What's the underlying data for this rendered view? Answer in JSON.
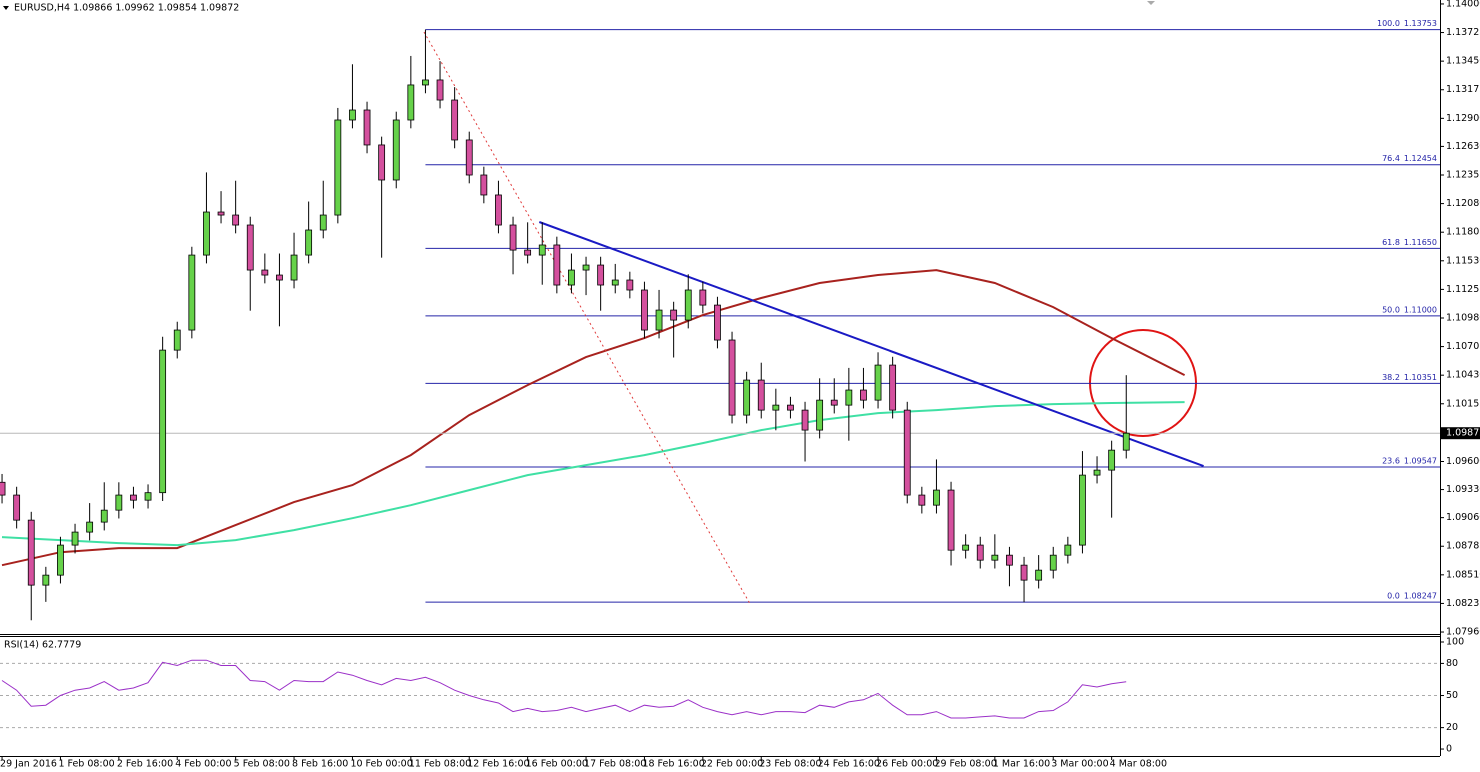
{
  "chart_data": [
    {
      "type": "candlestick",
      "title": "EURUSD,H4  1.09866 1.09962 1.09854 1.09872",
      "categories": [
        "29 Jan 2016",
        null,
        null,
        null,
        "1 Feb 08:00",
        null,
        null,
        null,
        "2 Feb 16:00",
        null,
        null,
        null,
        "4 Feb 00:00",
        null,
        null,
        null,
        "5 Feb 08:00",
        null,
        null,
        null,
        "8 Feb 16:00",
        null,
        null,
        null,
        "10 Feb 00:00",
        null,
        null,
        null,
        "11 Feb 08:00",
        null,
        null,
        null,
        "12 Feb 16:00",
        null,
        null,
        null,
        "16 Feb 00:00",
        null,
        null,
        null,
        "17 Feb 08:00",
        null,
        null,
        null,
        "18 Feb 16:00",
        null,
        null,
        null,
        "22 Feb 00:00",
        null,
        null,
        null,
        "23 Feb 08:00",
        null,
        null,
        null,
        "24 Feb 16:00",
        null,
        null,
        null,
        "26 Feb 00:00",
        null,
        null,
        null,
        "29 Feb 08:00",
        null,
        null,
        null,
        "1 Mar 16:00",
        null,
        null,
        null,
        "3 Mar 00:00",
        null,
        null,
        null,
        "4 Mar 08:00",
        null
      ],
      "open": [
        1.094,
        1.09277,
        1.09036,
        1.08411,
        1.08507,
        1.08796,
        1.08921,
        1.09017,
        1.09132,
        1.09277,
        1.09228,
        1.093,
        1.10671,
        1.10864,
        1.11585,
        1.11999,
        1.1197,
        1.11874,
        1.11441,
        1.11393,
        1.11345,
        1.11585,
        1.11826,
        1.1197,
        1.12884,
        1.1298,
        1.12644,
        1.12307,
        1.12884,
        1.13221,
        1.13269,
        1.13076,
        1.12692,
        1.12355,
        1.12163,
        1.11874,
        1.11633,
        1.11585,
        1.11682,
        1.11297,
        1.11441,
        1.11489,
        1.11297,
        1.11345,
        1.11249,
        1.10864,
        1.11056,
        1.1096,
        1.11249,
        1.11104,
        1.10768,
        1.10046,
        1.10383,
        1.10094,
        1.10142,
        1.10094,
        1.09902,
        1.1019,
        1.10142,
        1.10287,
        1.1019,
        1.10527,
        1.10094,
        1.09277,
        1.0918,
        1.09325,
        1.08747,
        1.08796,
        1.08651,
        1.08699,
        1.08603,
        1.08459,
        1.08555,
        1.08699,
        1.08796,
        1.09469,
        1.09517,
        1.09709
      ],
      "high": [
        1.0948,
        1.09357,
        1.09116,
        1.08587,
        1.08876,
        1.09001,
        1.092,
        1.094,
        1.094,
        1.09357,
        1.0938,
        1.108,
        1.10944,
        1.11665,
        1.1238,
        1.122,
        1.123,
        1.11954,
        1.116,
        1.116,
        1.118,
        1.121,
        1.123,
        1.13,
        1.1342,
        1.1306,
        1.12724,
        1.12964,
        1.135,
        1.13753,
        1.1345,
        1.132,
        1.12772,
        1.12435,
        1.123,
        1.11954,
        1.119,
        1.119,
        1.11762,
        1.116,
        1.11569,
        1.11569,
        1.115,
        1.11425,
        1.11329,
        1.1125,
        1.11136,
        1.114,
        1.11329,
        1.11184,
        1.10848,
        1.10463,
        1.1055,
        1.103,
        1.10222,
        1.10174,
        1.104,
        1.104,
        1.105,
        1.105,
        1.1065,
        1.10607,
        1.10174,
        1.09357,
        1.0962,
        1.09405,
        1.089,
        1.08876,
        1.089,
        1.08779,
        1.08683,
        1.087,
        1.08779,
        1.08876,
        1.097,
        1.0965,
        1.098,
        1.1043
      ],
      "low": [
        1.09197,
        1.08956,
        1.08073,
        1.0825,
        1.08427,
        1.08716,
        1.08841,
        1.08937,
        1.09052,
        1.09148,
        1.09148,
        1.0922,
        1.10591,
        1.10784,
        1.11505,
        1.1189,
        1.11794,
        1.1105,
        1.11313,
        1.109,
        1.11265,
        1.11505,
        1.11746,
        1.1189,
        1.12804,
        1.12564,
        1.1156,
        1.12227,
        1.12804,
        1.13141,
        1.12996,
        1.12612,
        1.12275,
        1.12083,
        1.11794,
        1.114,
        1.11505,
        1.113,
        1.11217,
        1.11217,
        1.112,
        1.1105,
        1.11217,
        1.11169,
        1.10784,
        1.10784,
        1.106,
        1.1088,
        1.11024,
        1.10688,
        1.09966,
        1.09966,
        1.10014,
        1.099,
        1.10014,
        1.096,
        1.09822,
        1.10062,
        1.098,
        1.1011,
        1.1011,
        1.10014,
        1.09197,
        1.091,
        1.091,
        1.086,
        1.08667,
        1.08571,
        1.08571,
        1.084,
        1.08247,
        1.08379,
        1.08475,
        1.08619,
        1.08716,
        1.09389,
        1.0906,
        1.09629
      ],
      "close": [
        1.09277,
        1.09036,
        1.08411,
        1.08507,
        1.08796,
        1.08921,
        1.09017,
        1.09132,
        1.09277,
        1.09228,
        1.093,
        1.10671,
        1.10864,
        1.11585,
        1.11999,
        1.1197,
        1.11874,
        1.11441,
        1.11393,
        1.11345,
        1.11585,
        1.11826,
        1.1197,
        1.12884,
        1.1298,
        1.12644,
        1.12307,
        1.12884,
        1.13221,
        1.13269,
        1.13076,
        1.12692,
        1.12355,
        1.12163,
        1.11874,
        1.11633,
        1.11585,
        1.11682,
        1.11297,
        1.11441,
        1.11489,
        1.11297,
        1.11345,
        1.11249,
        1.10864,
        1.11056,
        1.1096,
        1.11249,
        1.11104,
        1.10768,
        1.10046,
        1.10383,
        1.10094,
        1.10142,
        1.10094,
        1.09902,
        1.1019,
        1.10142,
        1.10287,
        1.1019,
        1.10527,
        1.10094,
        1.09277,
        1.0918,
        1.09325,
        1.08747,
        1.08796,
        1.08651,
        1.08699,
        1.08603,
        1.08459,
        1.08555,
        1.08699,
        1.08796,
        1.09469,
        1.09517,
        1.09709,
        1.09872
      ],
      "up_color": "#66d24a",
      "down_color": "#d4509e",
      "xlim": [
        -0.14,
        98.49
      ],
      "ylim": [
        1.07941,
        1.14038
      ],
      "yticks": [
        {
          "value": 1.14,
          "label": "1.14000"
        },
        {
          "value": 1.13725,
          "label": "1.13725"
        },
        {
          "value": 1.1345,
          "label": "1.13450"
        },
        {
          "value": 1.13175,
          "label": "1.13175"
        },
        {
          "value": 1.129,
          "label": "1.12900"
        },
        {
          "value": 1.1263,
          "label": "1.12630"
        },
        {
          "value": 1.12355,
          "label": "1.12355"
        },
        {
          "value": 1.1208,
          "label": "1.12080"
        },
        {
          "value": 1.11805,
          "label": "1.11805"
        },
        {
          "value": 1.1153,
          "label": "1.11530"
        },
        {
          "value": 1.11255,
          "label": "1.11255"
        },
        {
          "value": 1.1098,
          "label": "1.10980"
        },
        {
          "value": 1.10705,
          "label": "1.10705"
        },
        {
          "value": 1.1043,
          "label": "1.10430"
        },
        {
          "value": 1.10155,
          "label": "1.10155"
        },
        {
          "value": 1.096,
          "label": "1.09600"
        },
        {
          "value": 1.0933,
          "label": "1.09330"
        },
        {
          "value": 1.0906,
          "label": "1.09060"
        },
        {
          "value": 1.08785,
          "label": "1.08785"
        },
        {
          "value": 1.0851,
          "label": "1.08510"
        },
        {
          "value": 1.08235,
          "label": "1.08235"
        },
        {
          "value": 1.0796,
          "label": "1.07960"
        }
      ],
      "last_price": {
        "value": 1.09872,
        "label": "1.09872"
      },
      "moving_averages": [
        {
          "color": "#a8221e",
          "x": [
            0,
            4,
            8,
            12,
            16,
            20,
            24,
            28,
            32,
            36,
            40,
            44,
            48,
            52,
            56,
            60,
            64,
            68,
            72,
            76,
            81
          ],
          "values": [
            1.08603,
            1.08728,
            1.08767,
            1.08767,
            1.08988,
            1.09209,
            1.09373,
            1.09661,
            1.10046,
            1.10335,
            1.10604,
            1.10787,
            1.11008,
            1.11172,
            1.11316,
            1.11393,
            1.11441,
            1.11316,
            1.11085,
            1.10787,
            1.10431
          ]
        },
        {
          "color": "#3fe0a4",
          "x": [
            0,
            4,
            8,
            12,
            16,
            20,
            24,
            28,
            32,
            36,
            40,
            44,
            48,
            52,
            56,
            60,
            64,
            68,
            72,
            76,
            81
          ],
          "values": [
            1.08873,
            1.08844,
            1.08815,
            1.08796,
            1.08844,
            1.0894,
            1.09055,
            1.0918,
            1.09325,
            1.09469,
            1.09565,
            1.09661,
            1.09777,
            1.09902,
            1.09998,
            1.10065,
            1.10094,
            1.10133,
            1.10152,
            1.10162,
            1.10171
          ]
        }
      ],
      "trendlines": [
        {
          "color": "#1a1ac4",
          "style": "solid",
          "x": [
            36.8,
            82.3
          ],
          "values": [
            1.11903,
            1.09556
          ]
        },
        {
          "color": "#e03b3b",
          "style": "dotted",
          "x": [
            28.9,
            51.2
          ],
          "values": [
            1.1373,
            1.08238
          ]
        }
      ],
      "fibonacci": {
        "color": "#2424a8",
        "x_start": 29,
        "levels": [
          {
            "ratio": "100.0",
            "price": {
              "value": 1.13753,
              "label": "1.13753"
            }
          },
          {
            "ratio": "76.4",
            "price": {
              "value": 1.12454,
              "label": "1.12454"
            }
          },
          {
            "ratio": "61.8",
            "price": {
              "value": 1.1165,
              "label": "1.11650"
            }
          },
          {
            "ratio": "50.0",
            "price": {
              "value": 1.11,
              "label": "1.11000"
            }
          },
          {
            "ratio": "38.2",
            "price": {
              "value": 1.10351,
              "label": "1.10351"
            }
          },
          {
            "ratio": "23.6",
            "price": {
              "value": 1.09547,
              "label": "1.09547"
            }
          },
          {
            "ratio": "0.0",
            "price": {
              "value": 1.08247,
              "label": "1.08247"
            }
          }
        ]
      }
    },
    {
      "type": "line",
      "title": "RSI(14) 62.7779",
      "values": [
        64,
        55,
        40,
        41,
        50,
        55,
        57,
        63,
        55,
        57,
        62,
        81,
        78,
        83,
        83,
        78,
        78,
        64,
        63,
        55,
        64,
        63,
        63,
        72,
        69,
        64,
        60,
        66,
        64,
        67,
        62,
        55,
        50,
        46,
        43,
        35,
        38,
        35,
        36,
        39,
        35,
        38,
        41,
        35,
        41,
        39,
        40,
        46,
        39,
        35,
        32,
        35,
        32,
        35,
        35,
        34,
        41,
        39,
        44,
        46,
        52,
        41,
        32,
        32,
        35,
        29,
        29,
        30,
        31,
        29,
        29,
        35,
        36,
        44,
        60,
        58,
        61,
        62.7779
      ],
      "color": "#9b30c8",
      "ylim": [
        -6.5,
        105.6
      ],
      "yticks": [
        0,
        20,
        50,
        80,
        100
      ],
      "levels": [
        20,
        50,
        80
      ]
    }
  ]
}
